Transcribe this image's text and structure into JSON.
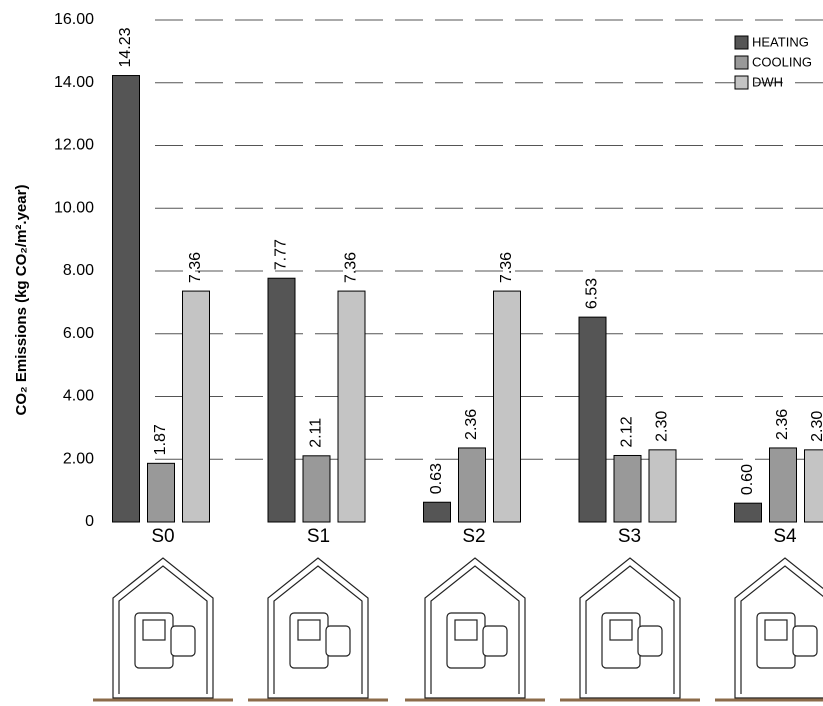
{
  "chart_data": {
    "type": "bar",
    "y_label": "CO₂ Emissions (kg CO₂/m².year)",
    "categories": [
      "S0",
      "S1",
      "S2",
      "S3",
      "S4"
    ],
    "series": [
      {
        "name": "HEATING",
        "color": "#555555",
        "values": [
          14.23,
          7.77,
          0.63,
          6.53,
          0.6
        ],
        "value_labels": [
          "14.23",
          "7.77",
          "0.63",
          "6.53",
          "0.60"
        ]
      },
      {
        "name": "COOLING",
        "color": "#999999",
        "values": [
          1.87,
          2.11,
          2.36,
          2.12,
          2.36
        ],
        "value_labels": [
          "1.87",
          "2.11",
          "2.36",
          "2.12",
          "2.36"
        ]
      },
      {
        "name": "DWH",
        "color": "#c4c4c4",
        "values": [
          7.36,
          7.36,
          7.36,
          2.3,
          2.3
        ],
        "value_labels": [
          "7.36",
          "7.36",
          "7.36",
          "2.30",
          "2.30"
        ]
      }
    ],
    "ylim": [
      0,
      16
    ],
    "yticks": [
      0,
      {
        "value": 2,
        "label": "2.00"
      },
      {
        "value": 4,
        "label": "4.00"
      },
      {
        "value": 6,
        "label": "6.00"
      },
      {
        "value": 8,
        "label": "8.00"
      },
      {
        "value": 10,
        "label": "10.00"
      },
      {
        "value": 12,
        "label": "12.00"
      },
      {
        "value": 14,
        "label": "14.00"
      },
      {
        "value": 16,
        "label": "16.00"
      }
    ],
    "grid": true,
    "legend": "top-right"
  }
}
